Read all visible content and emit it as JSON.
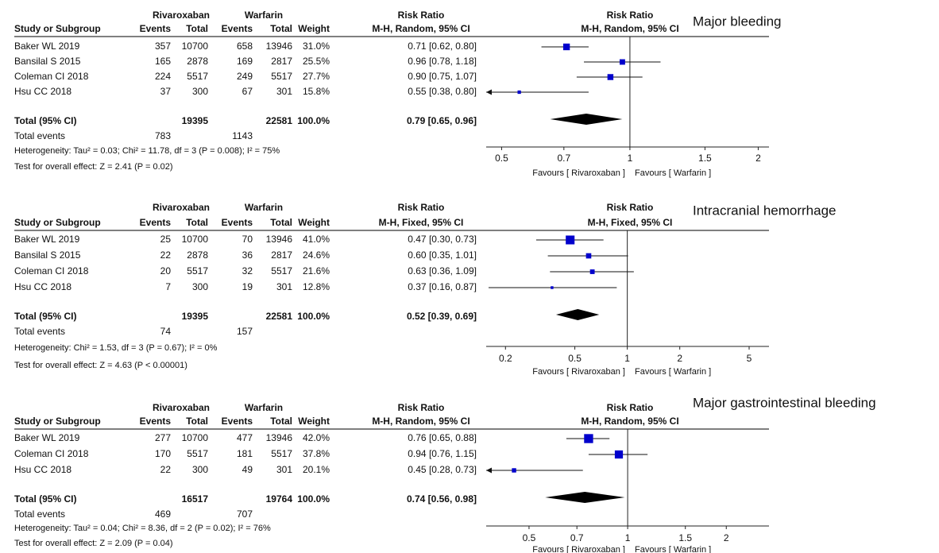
{
  "chart_data": [
    {
      "type": "forest",
      "title": "Major bleeding",
      "title_color": "#e8231b",
      "marker_color": "#0000cc",
      "groups": [
        "Rivaroxaban",
        "Warfarin"
      ],
      "effect_header": "Risk Ratio",
      "columns": {
        "study": "Study or Subgroup",
        "events": "Events",
        "total": "Total",
        "weight": "Weight",
        "method": "M-H, Random, 95% CI"
      },
      "studies": [
        {
          "name": "Baker WL 2019",
          "events": [
            357,
            658
          ],
          "totals": [
            10700,
            13946
          ],
          "weight": 31.0,
          "weight_label": "31.0%",
          "rr": 0.71,
          "ci": [
            0.62,
            0.8
          ],
          "ci_label": "0.71 [0.62, 0.80]"
        },
        {
          "name": "Bansilal S 2015",
          "events": [
            165,
            169
          ],
          "totals": [
            2878,
            2817
          ],
          "weight": 25.5,
          "weight_label": "25.5%",
          "rr": 0.96,
          "ci": [
            0.78,
            1.18
          ],
          "ci_label": "0.96 [0.78, 1.18]"
        },
        {
          "name": "Coleman CI 2018",
          "events": [
            224,
            249
          ],
          "totals": [
            5517,
            5517
          ],
          "weight": 27.7,
          "weight_label": "27.7%",
          "rr": 0.9,
          "ci": [
            0.75,
            1.07
          ],
          "ci_label": "0.90 [0.75, 1.07]"
        },
        {
          "name": "Hsu CC 2018",
          "events": [
            37,
            67
          ],
          "totals": [
            300,
            301
          ],
          "weight": 15.8,
          "weight_label": "15.8%",
          "rr": 0.55,
          "ci": [
            0.38,
            0.8
          ],
          "ci_label": "0.55 [0.38, 0.80]"
        }
      ],
      "overall": {
        "name": "Total (95% CI)",
        "totals": [
          19395,
          22581
        ],
        "weight": 100.0,
        "weight_label": "100.0%",
        "rr": 0.79,
        "ci": [
          0.65,
          0.96
        ],
        "ci_label": "0.79 [0.65, 0.96]",
        "events_label": "Total events",
        "events": [
          783,
          1143
        ]
      },
      "heterogeneity": "Heterogeneity: Tau² = 0.03; Chi² = 11.78, df = 3 (P = 0.008); I² = 75%",
      "overall_effect": "Test for overall effect: Z = 2.41 (P = 0.02)",
      "log_x": true,
      "xlim": [
        0.46,
        2.12
      ],
      "xticks": [
        0.5,
        0.7,
        1,
        1.5,
        2
      ],
      "favours": [
        "Favours [ Rivaroxaban ]",
        "Favours [ Warfarin ]"
      ]
    },
    {
      "type": "forest",
      "title": "Intracranial hemorrhage",
      "title_color": "#e8231b",
      "marker_color": "#0000cc",
      "groups": [
        "Rivaroxaban",
        "Warfarin"
      ],
      "effect_header": "Risk Ratio",
      "columns": {
        "study": "Study or Subgroup",
        "events": "Events",
        "total": "Total",
        "weight": "Weight",
        "method": "M-H, Fixed, 95% CI"
      },
      "studies": [
        {
          "name": "Baker WL 2019",
          "events": [
            25,
            70
          ],
          "totals": [
            10700,
            13946
          ],
          "weight": 41.0,
          "weight_label": "41.0%",
          "rr": 0.47,
          "ci": [
            0.3,
            0.73
          ],
          "ci_label": "0.47 [0.30, 0.73]"
        },
        {
          "name": "Bansilal S 2015",
          "events": [
            22,
            36
          ],
          "totals": [
            2878,
            2817
          ],
          "weight": 24.6,
          "weight_label": "24.6%",
          "rr": 0.6,
          "ci": [
            0.35,
            1.01
          ],
          "ci_label": "0.60 [0.35, 1.01]"
        },
        {
          "name": "Coleman CI 2018",
          "events": [
            20,
            32
          ],
          "totals": [
            5517,
            5517
          ],
          "weight": 21.6,
          "weight_label": "21.6%",
          "rr": 0.63,
          "ci": [
            0.36,
            1.09
          ],
          "ci_label": "0.63 [0.36, 1.09]"
        },
        {
          "name": "Hsu CC 2018",
          "events": [
            7,
            19
          ],
          "totals": [
            300,
            301
          ],
          "weight": 12.8,
          "weight_label": "12.8%",
          "rr": 0.37,
          "ci": [
            0.16,
            0.87
          ],
          "ci_label": "0.37 [0.16, 0.87]"
        }
      ],
      "overall": {
        "name": "Total (95% CI)",
        "totals": [
          19395,
          22581
        ],
        "weight": 100.0,
        "weight_label": "100.0%",
        "rr": 0.52,
        "ci": [
          0.39,
          0.69
        ],
        "ci_label": "0.52 [0.39, 0.69]",
        "events_label": "Total events",
        "events": [
          74,
          157
        ]
      },
      "heterogeneity": "Heterogeneity: Chi² = 1.53, df = 3 (P = 0.67); I² = 0%",
      "overall_effect": "Test for overall effect: Z = 4.63 (P < 0.00001)",
      "log_x": true,
      "xlim": [
        0.155,
        6.5
      ],
      "xticks": [
        0.2,
        0.5,
        1,
        2,
        5
      ],
      "favours": [
        "Favours [ Rivaroxaban ]",
        "Favours [ Warfarin ]"
      ]
    },
    {
      "type": "forest",
      "title": "Major gastrointestinal bleeding",
      "title_color": "#e8231b",
      "marker_color": "#0000cc",
      "groups": [
        "Rivaroxaban",
        "Warfarin"
      ],
      "effect_header": "Risk Ratio",
      "columns": {
        "study": "Study or Subgroup",
        "events": "Events",
        "total": "Total",
        "weight": "Weight",
        "method": "M-H, Random, 95% CI"
      },
      "studies": [
        {
          "name": "Baker WL 2019",
          "events": [
            277,
            477
          ],
          "totals": [
            10700,
            13946
          ],
          "weight": 42.0,
          "weight_label": "42.0%",
          "rr": 0.76,
          "ci": [
            0.65,
            0.88
          ],
          "ci_label": "0.76 [0.65, 0.88]"
        },
        {
          "name": "Coleman CI 2018",
          "events": [
            170,
            181
          ],
          "totals": [
            5517,
            5517
          ],
          "weight": 37.8,
          "weight_label": "37.8%",
          "rr": 0.94,
          "ci": [
            0.76,
            1.15
          ],
          "ci_label": "0.94 [0.76, 1.15]"
        },
        {
          "name": "Hsu CC 2018",
          "events": [
            22,
            49
          ],
          "totals": [
            300,
            301
          ],
          "weight": 20.1,
          "weight_label": "20.1%",
          "rr": 0.45,
          "ci": [
            0.28,
            0.73
          ],
          "ci_label": "0.45 [0.28, 0.73]"
        }
      ],
      "overall": {
        "name": "Total (95% CI)",
        "totals": [
          16517,
          19764
        ],
        "weight": 100.0,
        "weight_label": "100.0%",
        "rr": 0.74,
        "ci": [
          0.56,
          0.98
        ],
        "ci_label": "0.74 [0.56, 0.98]",
        "events_label": "Total events",
        "events": [
          469,
          707
        ]
      },
      "heterogeneity": "Heterogeneity: Tau² = 0.04; Chi² = 8.36, df = 2 (P = 0.02); I² = 76%",
      "overall_effect": "Test for overall effect: Z = 2.09 (P = 0.04)",
      "log_x": true,
      "xlim": [
        0.37,
        2.7
      ],
      "xticks": [
        0.5,
        0.7,
        1,
        1.5,
        2
      ],
      "favours": [
        "Favours [ Rivaroxaban ]",
        "Favours [ Warfarin ]"
      ]
    }
  ]
}
